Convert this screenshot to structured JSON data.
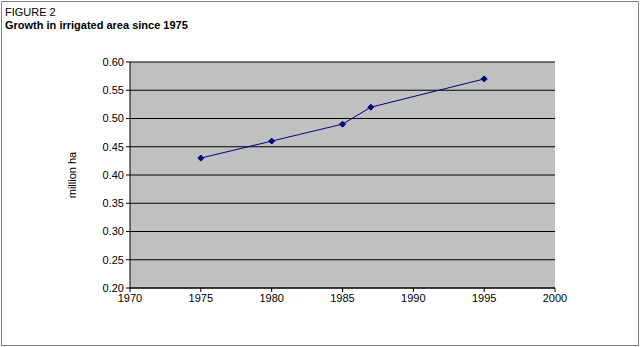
{
  "chart_data": {
    "type": "line",
    "title": "FIGURE 2",
    "subtitle": "Growth in irrigated area since 1975",
    "y_label": "million ha",
    "x": [
      1975,
      1980,
      1985,
      1987,
      1995
    ],
    "values": [
      0.43,
      0.46,
      0.49,
      0.52,
      0.57
    ],
    "color": "#000080",
    "marker": "diamond",
    "xlim": [
      1970,
      2000
    ],
    "xticks": [
      1970,
      1975,
      1980,
      1985,
      1990,
      1995,
      2000
    ],
    "ylim": [
      0.2,
      0.6
    ],
    "yticks": [
      {
        "value": 0.2,
        "label": "0.20"
      },
      0.25,
      {
        "value": 0.3,
        "label": "0.30"
      },
      0.35,
      {
        "value": 0.4,
        "label": "0.40"
      },
      0.45,
      {
        "value": 0.5,
        "label": "0.50"
      },
      0.55,
      {
        "value": 0.6,
        "label": "0.60"
      }
    ],
    "grid": true
  }
}
